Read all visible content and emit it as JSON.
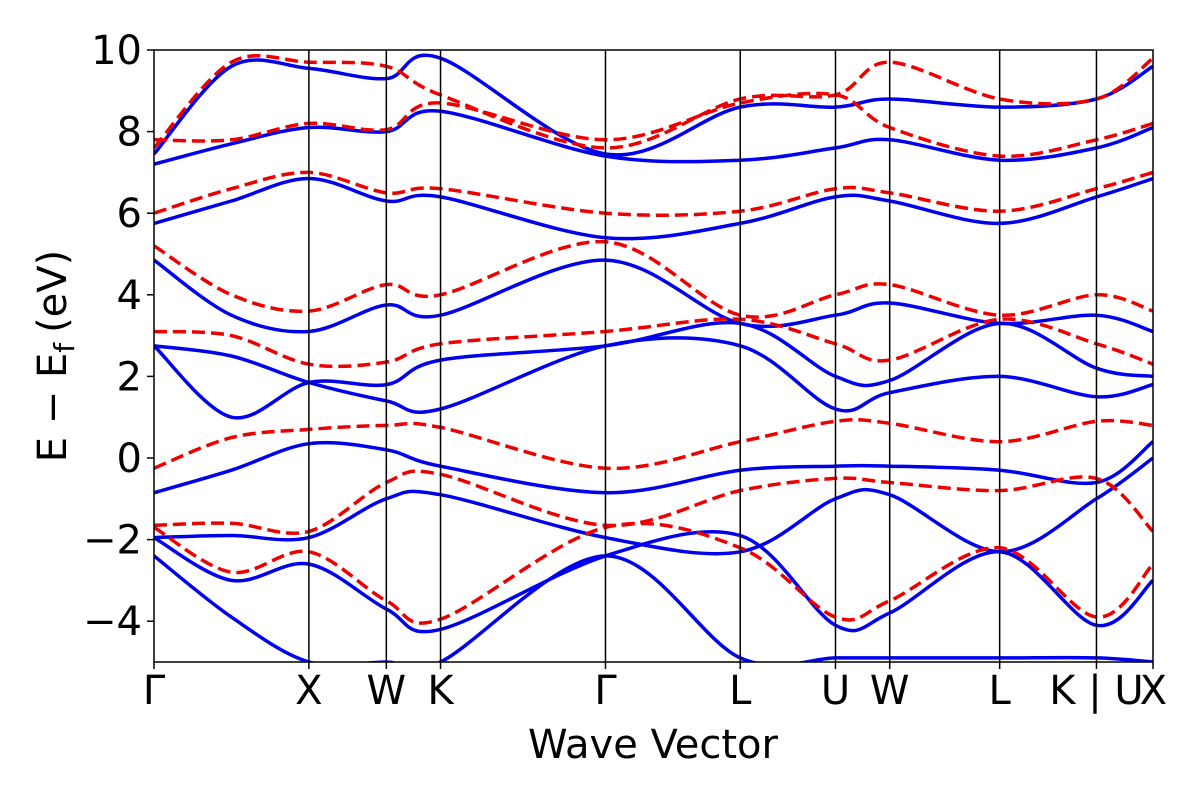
{
  "chart_data": {
    "type": "line",
    "title": "",
    "xlabel": "Wave Vector",
    "ylabel_main": "E − E",
    "ylabel_sub": "f",
    "ylabel_unit": "(eV)",
    "ylim": [
      -5,
      10
    ],
    "yticks": [
      10,
      8,
      6,
      4,
      2,
      0,
      -2,
      -4
    ],
    "ytick_labels": [
      "10",
      "8",
      "6",
      "4",
      "2",
      "0",
      "−2",
      "−4"
    ],
    "grid": false,
    "legend": "none",
    "xlim": [
      0,
      12.9
    ],
    "kpoints": [
      {
        "label": "Γ",
        "x": 0
      },
      {
        "label": "X",
        "x": 2.0
      },
      {
        "label": "W",
        "x": 3.0
      },
      {
        "label": "K",
        "x": 3.7
      },
      {
        "label": "Γ",
        "x": 5.83
      },
      {
        "label": "L",
        "x": 7.57
      },
      {
        "label": "U",
        "x": 8.8
      },
      {
        "label": "W",
        "x": 9.5
      },
      {
        "label": "L",
        "x": 10.92
      },
      {
        "label": "K | U",
        "x": 12.17
      },
      {
        "label": "X",
        "x": 12.9
      }
    ],
    "series": [
      {
        "style": "solid",
        "color": "#0000ee",
        "bands": [
          {
            "x": [
              0,
              1.0,
              2.0,
              3.0,
              3.7,
              5.83,
              7.57,
              8.8,
              9.5,
              10.92,
              12.17,
              12.9
            ],
            "y": [
              -1.95,
              -1.9,
              -1.95,
              -1.0,
              -0.9,
              -1.95,
              -2.3,
              -1.0,
              -0.9,
              -2.3,
              -1.0,
              0.0
            ]
          },
          {
            "x": [
              0,
              1.0,
              2.0,
              3.0,
              3.7,
              5.83,
              7.57,
              8.8,
              9.5,
              10.92,
              12.17,
              12.9
            ],
            "y": [
              -0.85,
              -0.3,
              0.35,
              0.2,
              -0.2,
              -0.85,
              -0.3,
              -0.2,
              -0.2,
              -0.3,
              -0.6,
              0.4
            ]
          },
          {
            "x": [
              0,
              1.0,
              2.0,
              3.0,
              3.7,
              5.83,
              7.57,
              8.8,
              9.5,
              10.92,
              12.17,
              12.9
            ],
            "y": [
              -1.95,
              -3.0,
              -2.6,
              -3.7,
              -4.2,
              -2.4,
              -1.9,
              -4.1,
              -3.8,
              -2.3,
              -4.1,
              -3.0
            ]
          },
          {
            "x": [
              0,
              1.0,
              2.0,
              3.0,
              3.7,
              5.83,
              7.57,
              8.8,
              9.5,
              10.92,
              12.17,
              12.9
            ],
            "y": [
              -2.4,
              -3.9,
              -5.0,
              -5.0,
              -5.0,
              -2.4,
              -4.9,
              -4.9,
              -4.9,
              -4.9,
              -4.9,
              -5.0
            ]
          },
          {
            "x": [
              0,
              1.0,
              2.0,
              3.0,
              3.7,
              5.83,
              7.57,
              8.8,
              9.5,
              10.92,
              12.17,
              12.9
            ],
            "y": [
              2.75,
              2.5,
              1.85,
              1.4,
              1.2,
              2.75,
              2.75,
              1.2,
              1.6,
              2.0,
              1.5,
              1.8
            ]
          },
          {
            "x": [
              0,
              1.0,
              2.0,
              3.0,
              3.7,
              5.83,
              7.57,
              8.8,
              9.5,
              10.92,
              12.17,
              12.9
            ],
            "y": [
              2.75,
              1.0,
              1.85,
              1.8,
              2.4,
              2.75,
              3.3,
              2.0,
              1.9,
              3.3,
              2.2,
              2.0
            ]
          },
          {
            "x": [
              0,
              1.0,
              2.0,
              3.0,
              3.7,
              5.83,
              7.57,
              8.8,
              9.5,
              10.92,
              12.17,
              12.9
            ],
            "y": [
              4.85,
              3.5,
              3.1,
              3.75,
              3.5,
              4.85,
              3.3,
              3.5,
              3.8,
              3.3,
              3.5,
              3.1
            ]
          },
          {
            "x": [
              0,
              1.0,
              2.0,
              3.0,
              3.7,
              5.83,
              7.57,
              8.8,
              9.5,
              10.92,
              12.17,
              12.9
            ],
            "y": [
              5.75,
              6.3,
              6.85,
              6.3,
              6.4,
              5.4,
              5.75,
              6.4,
              6.3,
              5.75,
              6.4,
              6.85
            ]
          },
          {
            "x": [
              0,
              1.0,
              2.0,
              3.0,
              3.7,
              5.83,
              7.57,
              8.8,
              9.5,
              10.92,
              12.17,
              12.9
            ],
            "y": [
              7.2,
              7.7,
              8.1,
              8.0,
              8.5,
              7.4,
              7.3,
              7.6,
              7.8,
              7.3,
              7.6,
              8.1
            ]
          },
          {
            "x": [
              0,
              1.0,
              2.0,
              3.0,
              3.7,
              5.83,
              7.57,
              8.8,
              9.5,
              10.92,
              12.17,
              12.9
            ],
            "y": [
              7.45,
              9.6,
              9.55,
              9.3,
              9.8,
              7.45,
              8.6,
              8.6,
              8.8,
              8.6,
              8.8,
              9.6
            ]
          }
        ]
      },
      {
        "style": "dashed",
        "color": "#ee0000",
        "bands": [
          {
            "x": [
              0,
              1.0,
              2.0,
              3.0,
              3.7,
              5.83,
              7.57,
              8.8,
              9.5,
              10.92,
              12.17,
              12.9
            ],
            "y": [
              -0.25,
              0.5,
              0.7,
              0.8,
              0.75,
              -0.25,
              0.4,
              0.9,
              0.85,
              0.4,
              0.9,
              0.8
            ]
          },
          {
            "x": [
              0,
              1.0,
              2.0,
              3.0,
              3.7,
              5.83,
              7.57,
              8.8,
              9.5,
              10.92,
              12.17,
              12.9
            ],
            "y": [
              -1.65,
              -1.6,
              -1.8,
              -0.6,
              -0.4,
              -1.65,
              -0.8,
              -0.5,
              -0.6,
              -0.8,
              -0.5,
              -1.8
            ]
          },
          {
            "x": [
              0,
              1.0,
              2.0,
              3.0,
              3.7,
              5.83,
              7.57,
              8.8,
              9.5,
              10.92,
              12.17,
              12.9
            ],
            "y": [
              -1.7,
              -2.8,
              -2.3,
              -3.5,
              -3.95,
              -1.7,
              -2.2,
              -3.9,
              -3.5,
              -2.2,
              -3.9,
              -2.6
            ]
          },
          {
            "x": [
              0,
              1.0,
              2.0,
              3.0,
              3.7,
              5.83,
              7.57,
              8.8,
              9.5,
              10.92,
              12.17,
              12.9
            ],
            "y": [
              3.1,
              3.0,
              2.3,
              2.35,
              2.8,
              3.1,
              3.4,
              2.8,
              2.4,
              3.4,
              2.8,
              2.3
            ]
          },
          {
            "x": [
              0,
              1.0,
              2.0,
              3.0,
              3.7,
              5.83,
              7.57,
              8.8,
              9.5,
              10.92,
              12.17,
              12.9
            ],
            "y": [
              5.2,
              4.0,
              3.6,
              4.25,
              4.0,
              5.3,
              3.5,
              4.0,
              4.25,
              3.5,
              4.0,
              3.6
            ]
          },
          {
            "x": [
              0,
              1.0,
              2.0,
              3.0,
              3.7,
              5.83,
              7.57,
              8.8,
              9.5,
              10.92,
              12.17,
              12.9
            ],
            "y": [
              6.0,
              6.6,
              7.0,
              6.5,
              6.6,
              6.0,
              6.05,
              6.6,
              6.5,
              6.05,
              6.6,
              7.0
            ]
          },
          {
            "x": [
              0,
              1.0,
              2.0,
              3.0,
              3.7,
              5.83,
              7.57,
              8.8,
              9.5,
              10.92,
              12.17,
              12.9
            ],
            "y": [
              7.8,
              7.8,
              8.2,
              8.05,
              8.7,
              7.8,
              8.7,
              8.9,
              8.1,
              7.4,
              7.8,
              8.2
            ]
          },
          {
            "x": [
              0,
              1.0,
              2.0,
              3.0,
              3.7,
              5.83,
              7.57,
              8.8,
              9.5,
              10.92,
              12.17,
              12.9
            ],
            "y": [
              7.6,
              9.7,
              9.7,
              9.6,
              8.9,
              7.6,
              8.8,
              8.9,
              9.7,
              8.8,
              8.8,
              9.8
            ]
          }
        ]
      }
    ]
  }
}
